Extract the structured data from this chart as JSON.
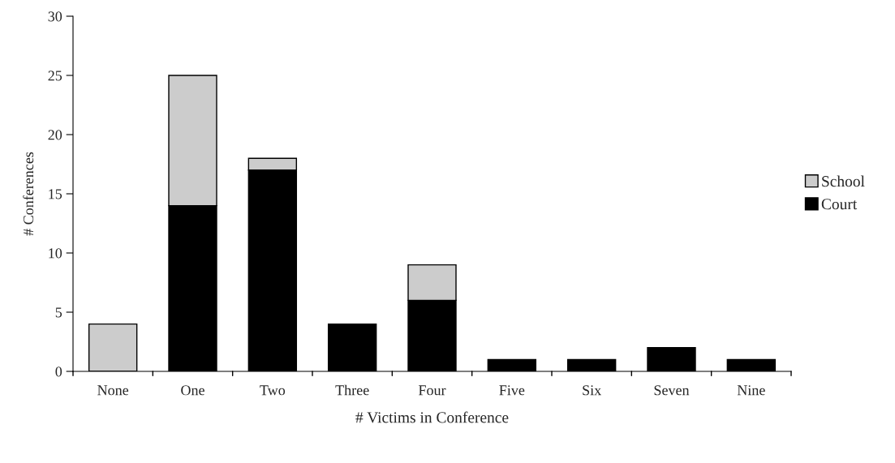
{
  "chart_data": {
    "type": "bar",
    "stacked": true,
    "xlabel": "# Victims in Conference",
    "ylabel": "# Conferences",
    "categories": [
      "None",
      "One",
      "Two",
      "Three",
      "Four",
      "Five",
      "Six",
      "Seven",
      "Nine"
    ],
    "series": [
      {
        "name": "Court",
        "color": "#000000",
        "values": [
          0,
          14,
          17,
          4,
          6,
          1,
          1,
          2,
          1
        ]
      },
      {
        "name": "School",
        "color": "#cccccc",
        "values": [
          4,
          11,
          1,
          0,
          3,
          0,
          0,
          0,
          0
        ]
      }
    ],
    "ylim": [
      0,
      30
    ],
    "yticks": [
      0,
      5,
      10,
      15,
      20,
      25,
      30
    ],
    "grid": false,
    "legend": "right"
  }
}
